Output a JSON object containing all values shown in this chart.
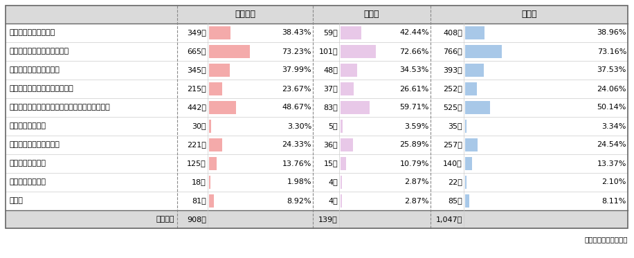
{
  "source": "東京商工リサーチ調べ",
  "col_headers": [
    "中小企業",
    "大企業",
    "全企業"
  ],
  "rows": [
    {
      "label": "大きな声を上げられた",
      "s_count": "349社",
      "s_pct": "38.43%",
      "s_val": 38.43,
      "l_count": "59社",
      "l_pct": "42.44%",
      "l_val": 42.44,
      "a_count": "408社",
      "a_pct": "38.96%",
      "a_val": 38.96
    },
    {
      "label": "口調が攻撃的・威圧的だった",
      "s_count": "665社",
      "s_pct": "73.23%",
      "s_val": 73.23,
      "l_count": "101社",
      "l_pct": "72.66%",
      "l_val": 72.66,
      "a_count": "766社",
      "a_pct": "73.16%",
      "a_val": 73.16
    },
    {
      "label": "一方的に話し続けられた",
      "s_count": "345社",
      "s_pct": "37.99%",
      "s_val": 37.99,
      "l_count": "48社",
      "l_pct": "34.53%",
      "l_val": 34.53,
      "a_count": "393社",
      "a_pct": "37.53%",
      "a_val": 37.53
    },
    {
      "label": "自社担当者の人格否定があった",
      "s_count": "215社",
      "s_pct": "23.67%",
      "s_val": 23.67,
      "l_count": "37社",
      "l_pct": "26.61%",
      "l_val": 26.61,
      "a_count": "252社",
      "a_pct": "24.06%",
      "a_val": 24.06
    },
    {
      "label": "長時間（期間）にわたって対応を余儀なくされた",
      "s_count": "442社",
      "s_pct": "48.67%",
      "s_val": 48.67,
      "l_count": "83社",
      "l_pct": "59.71%",
      "l_val": 59.71,
      "a_count": "525社",
      "a_pct": "50.14%",
      "a_val": 50.14
    },
    {
      "label": "録画・録音された",
      "s_count": "30社",
      "s_pct": "3.30%",
      "s_val": 3.3,
      "l_count": "5社",
      "l_pct": "3.59%",
      "l_val": 3.59,
      "a_count": "35社",
      "a_pct": "3.34%",
      "a_val": 3.34
    },
    {
      "label": "過度に謝罪を要求された",
      "s_count": "221社",
      "s_pct": "24.33%",
      "s_val": 24.33,
      "l_count": "36社",
      "l_pct": "25.89%",
      "l_val": 25.89,
      "a_count": "257社",
      "a_pct": "24.54%",
      "a_val": 24.54
    },
    {
      "label": "金銭を要求された",
      "s_count": "125社",
      "s_pct": "13.76%",
      "s_val": 13.76,
      "l_count": "15社",
      "l_pct": "10.79%",
      "l_val": 10.79,
      "a_count": "140社",
      "a_pct": "13.37%",
      "a_val": 13.37
    },
    {
      "label": "暴力を振るわれた",
      "s_count": "18社",
      "s_pct": "1.98%",
      "s_val": 1.98,
      "l_count": "4社",
      "l_pct": "2.87%",
      "l_val": 2.87,
      "a_count": "22社",
      "a_pct": "2.10%",
      "a_val": 2.1
    },
    {
      "label": "その他",
      "s_count": "81社",
      "s_pct": "8.92%",
      "s_val": 8.92,
      "l_count": "4社",
      "l_pct": "2.87%",
      "l_val": 2.87,
      "a_count": "85社",
      "a_pct": "8.11%",
      "a_val": 8.11
    }
  ],
  "footer": {
    "label": "回答社数",
    "s_count": "908社",
    "l_count": "139社",
    "a_count": "1,047社"
  },
  "bar_color_small": "#F4AAAA",
  "bar_color_large": "#E8C8E8",
  "bar_color_all": "#A8C8E8",
  "bar_max": 80,
  "bg_header": "#DADADA",
  "bg_footer": "#DADADA",
  "border_outer": "#666666",
  "border_section": "#888888",
  "border_inner": "#CCCCCC",
  "font_size_data": 8.0,
  "font_size_header": 9.0,
  "font_size_source": 7.5
}
